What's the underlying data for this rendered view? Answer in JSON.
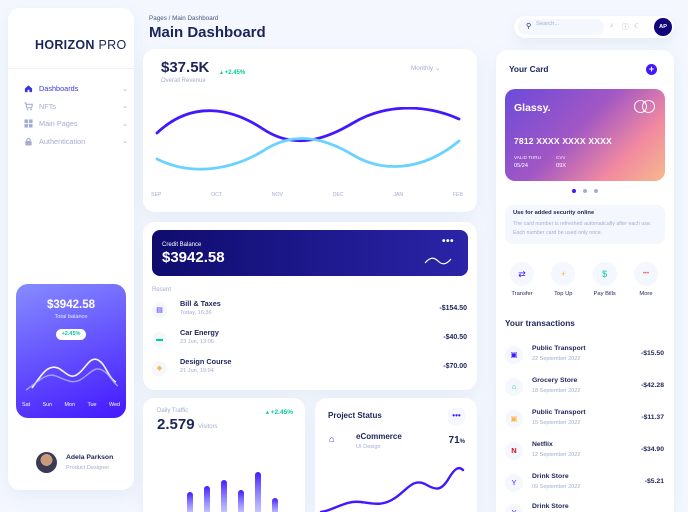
{
  "brand": {
    "name_bold": "HORIZON",
    "name_thin": "PRO"
  },
  "sidebar": {
    "items": [
      {
        "label": "Dashboards",
        "icon": "home-icon",
        "active": true
      },
      {
        "label": "NFTs",
        "icon": "cart-icon",
        "active": false
      },
      {
        "label": "Main Pages",
        "icon": "grid-icon",
        "active": false
      },
      {
        "label": "Authentication",
        "icon": "lock-icon",
        "active": false
      }
    ],
    "promo": {
      "amount": "$3942.58",
      "label": "Total balance",
      "change": "+2.45%",
      "days": [
        "Sat",
        "Sun",
        "Mon",
        "Tue",
        "Wed"
      ]
    },
    "profile": {
      "name": "Adela Parkson",
      "role": "Product Designer"
    }
  },
  "header": {
    "breadcrumb_root": "Pages",
    "breadcrumb_sep": "/",
    "breadcrumb_current": "Main Dashboard",
    "title": "Main Dashboard"
  },
  "revenue": {
    "amount": "$37.5K",
    "change": "+2.45%",
    "label": "Overall Revenue",
    "period": "Monthly",
    "months": [
      "SEP",
      "OCT",
      "NOV",
      "DEC",
      "JAN",
      "FEB"
    ]
  },
  "credit": {
    "label": "Credit Balance",
    "amount": "$3942.58",
    "menu": "•••",
    "recent_label": "Recent",
    "items": [
      {
        "name": "Bill & Taxes",
        "date": "Today, 16:36",
        "amount": "-$154.50",
        "icon": "receipt-icon"
      },
      {
        "name": "Car Energy",
        "date": "23 Jun, 13:06",
        "amount": "-$40.50",
        "icon": "car-icon"
      },
      {
        "name": "Design Course",
        "date": "21 Jun, 19:04",
        "amount": "-$70.00",
        "icon": "graduation-cap-icon"
      }
    ]
  },
  "traffic": {
    "label": "Daily Traffic",
    "change": "+2.45%",
    "value": "2.579",
    "unit": "Visitors"
  },
  "project": {
    "title": "Project Status",
    "menu": "•••",
    "name": "eCommerce",
    "sub": "UI Design",
    "percent": "71",
    "percent_sign": "%"
  },
  "search": {
    "placeholder": "Search..."
  },
  "user": {
    "initials": "AP"
  },
  "card": {
    "title": "Your Card",
    "brand": "Glassy.",
    "number": "7812 XXXX XXXX XXXX",
    "valid_label": "VALID THRU",
    "valid": "05/24",
    "cvv_label": "CVV",
    "cvv": "09X",
    "security_title": "Use for added security online",
    "security_desc": "The card number is refreshed automatically after each use. Each number card be used only once."
  },
  "actions": [
    {
      "label": "Transfer",
      "icon": "transfer-icon",
      "glyph": "⇄",
      "color": "#4318ff"
    },
    {
      "label": "Top Up",
      "icon": "plus-icon",
      "glyph": "+",
      "color": "#ffb547"
    },
    {
      "label": "Pay Bills",
      "icon": "dollar-icon",
      "glyph": "$",
      "color": "#05cd99"
    },
    {
      "label": "More",
      "icon": "more-icon",
      "glyph": "•••",
      "color": "#ee5d50"
    }
  ],
  "transactions": {
    "title": "Your transactions",
    "items": [
      {
        "name": "Public Transport",
        "date": "22 September 2022",
        "amount": "-$15.50",
        "icon": "bus-icon",
        "glyph": "▣",
        "color": "#4318ff"
      },
      {
        "name": "Grocery Store",
        "date": "18 September 2022",
        "amount": "-$42.28",
        "icon": "basket-icon",
        "glyph": "⌂",
        "color": "#05cd99"
      },
      {
        "name": "Public Transport",
        "date": "15 September 2022",
        "amount": "-$11.37",
        "icon": "bus-icon",
        "glyph": "▣",
        "color": "#ffb547"
      },
      {
        "name": "Netflix",
        "date": "12 September 2022",
        "amount": "-$34.90",
        "icon": "netflix-icon",
        "glyph": "N",
        "color": "#e50914"
      },
      {
        "name": "Drink Store",
        "date": "09 September 2022",
        "amount": "-$5.21",
        "icon": "drink-icon",
        "glyph": "Y",
        "color": "#4318ff"
      },
      {
        "name": "Drink Store",
        "date": "",
        "amount": "",
        "icon": "drink-icon",
        "glyph": "Y",
        "color": "#4318ff"
      }
    ]
  },
  "colors": {
    "accent": "#4318ff",
    "navy": "#1b2559",
    "muted": "#a3aed0",
    "green": "#05cd99",
    "bg": "#f4f7fe"
  }
}
